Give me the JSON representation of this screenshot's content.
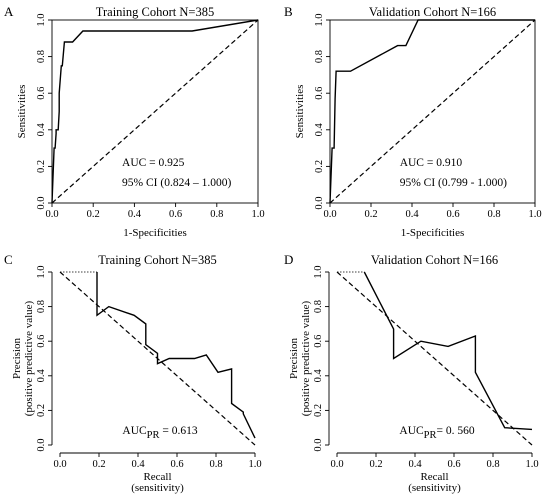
{
  "chart_data": [
    {
      "panel_letter": "A",
      "type": "line",
      "title": "Training Cohort  N=385",
      "xlabel": "1-Specificities",
      "ylabel": "Sensitivities",
      "xlim": [
        0,
        1
      ],
      "ylim": [
        0,
        1
      ],
      "x_ticks": [
        "0.0",
        "0.2",
        "0.4",
        "0.6",
        "0.8",
        "1.0"
      ],
      "y_ticks": [
        "0.0",
        "0.2",
        "0.4",
        "0.6",
        "0.8",
        "1.0"
      ],
      "diagonal": "reference",
      "series": [
        {
          "x": [
            0.0,
            0.01,
            0.015,
            0.02,
            0.02,
            0.03,
            0.035,
            0.035,
            0.045,
            0.05,
            0.06,
            0.06,
            0.09,
            0.1,
            0.15,
            0.16,
            0.68,
            1.0
          ],
          "y": [
            0.0,
            0.3,
            0.3,
            0.38,
            0.4,
            0.4,
            0.5,
            0.6,
            0.75,
            0.75,
            0.88,
            0.88,
            0.88,
            0.88,
            0.94,
            0.94,
            0.94,
            1.0
          ]
        }
      ],
      "annotations": [
        "AUC = 0.925",
        "95% CI (0.824 – 1.000)"
      ]
    },
    {
      "panel_letter": "B",
      "type": "line",
      "title": "Validation Cohort  N=166",
      "xlabel": "1-Specificities",
      "ylabel": "Sensitivities",
      "xlim": [
        0,
        1
      ],
      "ylim": [
        0,
        1
      ],
      "x_ticks": [
        "0.0",
        "0.2",
        "0.4",
        "0.6",
        "0.8",
        "1.0"
      ],
      "y_ticks": [
        "0.0",
        "0.2",
        "0.4",
        "0.6",
        "0.8",
        "1.0"
      ],
      "diagonal": "reference",
      "series": [
        {
          "x": [
            0.0,
            0.01,
            0.02,
            0.025,
            0.03,
            0.1,
            0.33,
            0.37,
            0.43,
            1.0
          ],
          "y": [
            0.0,
            0.3,
            0.3,
            0.57,
            0.72,
            0.72,
            0.86,
            0.86,
            1.0,
            1.0
          ]
        }
      ],
      "annotations": [
        "AUC = 0.910",
        "95% CI (0.799 - 1.000)"
      ]
    },
    {
      "panel_letter": "C",
      "type": "line",
      "title": "Training Cohort  N=385",
      "xlabel": [
        "Recall",
        "(sensitivity)"
      ],
      "ylabel": [
        "Precision",
        "(positive predictive value)"
      ],
      "xlim": [
        0,
        1
      ],
      "ylim": [
        0,
        1
      ],
      "x_ticks": [
        "0.0",
        "0.2",
        "0.4",
        "0.6",
        "0.8",
        "1.0"
      ],
      "y_ticks": [
        "0.0",
        "0.2",
        "0.4",
        "0.6",
        "0.8",
        "1.0"
      ],
      "diagonal": "baseline",
      "lead_segment": {
        "x": [
          0.0,
          0.19
        ],
        "y": [
          1.0,
          1.0
        ]
      },
      "series": [
        {
          "x": [
            0.19,
            0.19,
            0.25,
            0.38,
            0.44,
            0.44,
            0.5,
            0.5,
            0.5,
            0.56,
            0.63,
            0.69,
            0.75,
            0.81,
            0.81,
            0.88,
            0.88,
            0.94,
            0.94,
            1.0
          ],
          "y": [
            1.0,
            0.75,
            0.8,
            0.75,
            0.7,
            0.58,
            0.53,
            0.5,
            0.47,
            0.5,
            0.5,
            0.5,
            0.52,
            0.42,
            0.42,
            0.44,
            0.24,
            0.19,
            0.18,
            0.04
          ]
        }
      ],
      "annotations": [
        "AUC",
        "PR",
        " = 0.613"
      ]
    },
    {
      "panel_letter": "D",
      "type": "line",
      "title": "Validation Cohort  N=166",
      "xlabel": [
        "Recall",
        "(sensitivity)"
      ],
      "ylabel": [
        "Precision",
        "(positive predictive value)"
      ],
      "xlim": [
        0,
        1
      ],
      "ylim": [
        0,
        1
      ],
      "x_ticks": [
        "0.0",
        "0.2",
        "0.4",
        "0.6",
        "0.8",
        "1.0"
      ],
      "y_ticks": [
        "0.0",
        "0.2",
        "0.4",
        "0.6",
        "0.8",
        "1.0"
      ],
      "diagonal": "baseline",
      "lead_segment": {
        "x": [
          0.0,
          0.14
        ],
        "y": [
          1.0,
          1.0
        ]
      },
      "series": [
        {
          "x": [
            0.14,
            0.14,
            0.29,
            0.29,
            0.43,
            0.57,
            0.71,
            0.71,
            0.86,
            0.86,
            1.0,
            1.0
          ],
          "y": [
            1.0,
            1.0,
            0.67,
            0.5,
            0.6,
            0.57,
            0.63,
            0.42,
            0.1,
            0.1,
            0.09,
            0.09
          ]
        }
      ],
      "annotations": [
        "AUC",
        "PR",
        "= 0. 560"
      ]
    }
  ]
}
